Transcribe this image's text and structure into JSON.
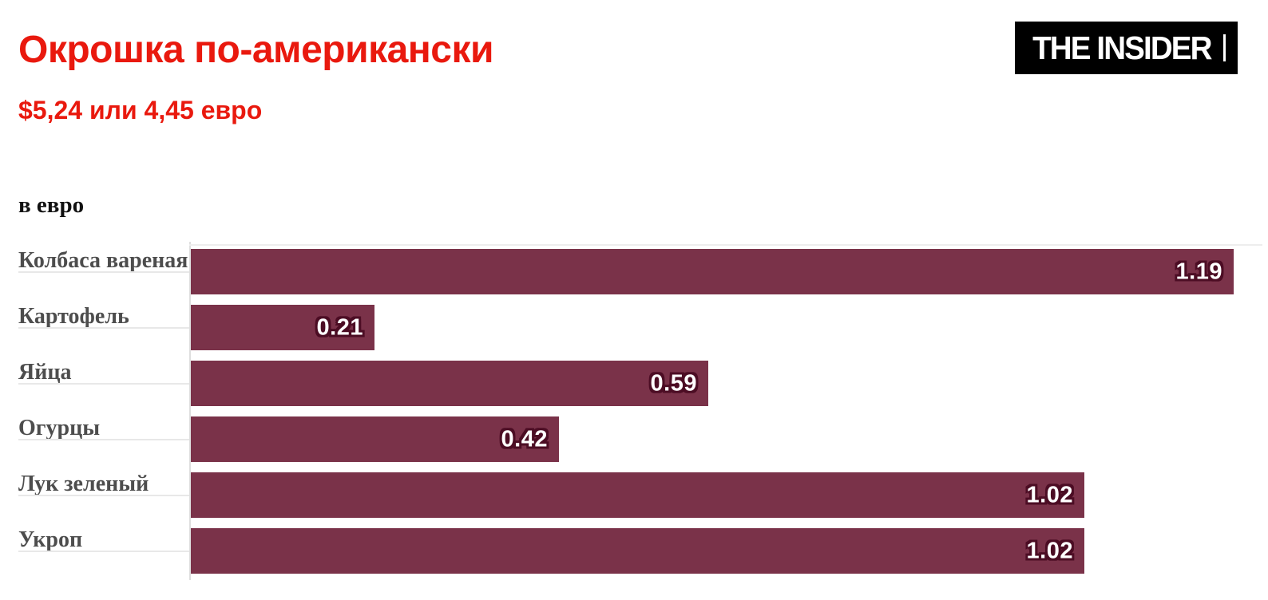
{
  "header": {
    "title": "Окрошка по-американски",
    "subtitle": "$5,24 или 4,45 евро",
    "logo_text": "THE INSIDER"
  },
  "chart_data": {
    "type": "bar",
    "orientation": "horizontal",
    "title": "Окрошка по-американски",
    "subtitle": "$5,24 или 4,45 евро",
    "unit_label": "в евро",
    "categories": [
      "Колбаса вареная",
      "Картофель",
      "Яйца",
      "Огурцы",
      "Лук зеленый",
      "Укроп"
    ],
    "values": [
      1.19,
      0.21,
      0.59,
      0.42,
      1.02,
      1.02
    ],
    "value_labels": [
      "1.19",
      "0.21",
      "0.59",
      "0.42",
      "1.02",
      "1.02"
    ],
    "xlim": [
      0,
      1.19
    ],
    "grid": false,
    "legend": false,
    "bar_color": "#7a3249",
    "value_text_color": "#ffffff",
    "value_outline_color": "#4c0d24",
    "category_label_color": "#4d4d4d",
    "accent_color": "#e9190e",
    "logo_bg_color": "#000000"
  }
}
